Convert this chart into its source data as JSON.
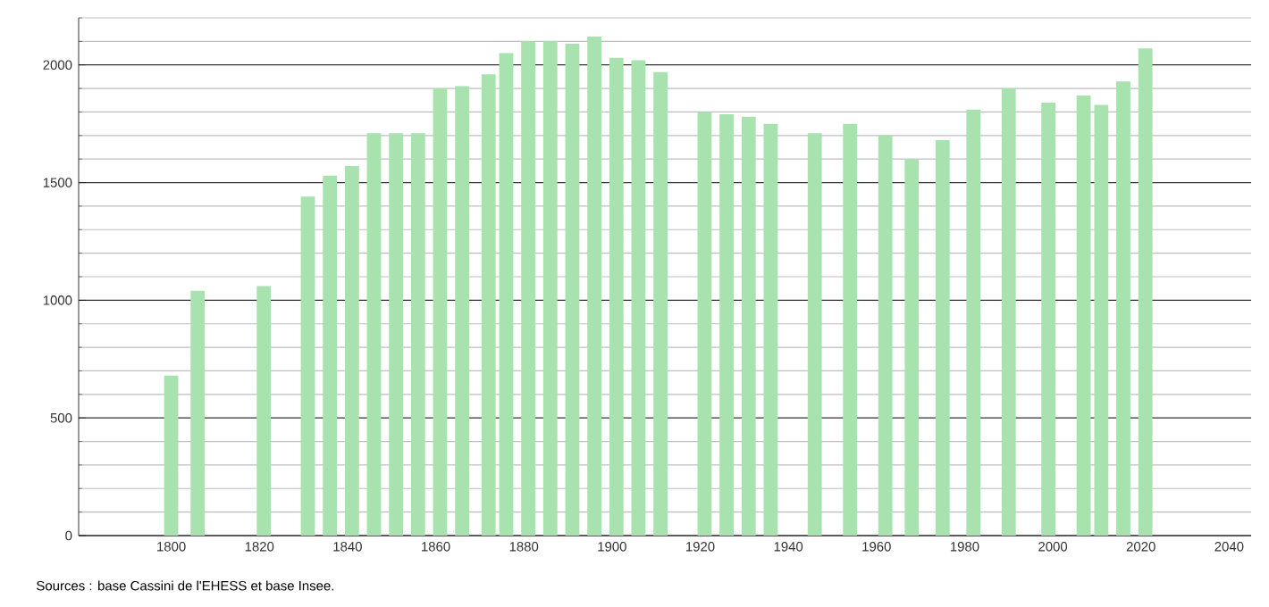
{
  "chart_data": {
    "type": "bar",
    "x": [
      1800,
      1806,
      1821,
      1831,
      1836,
      1841,
      1846,
      1851,
      1856,
      1861,
      1866,
      1872,
      1876,
      1881,
      1886,
      1891,
      1896,
      1901,
      1906,
      1911,
      1921,
      1926,
      1931,
      1936,
      1946,
      1954,
      1962,
      1968,
      1975,
      1982,
      1990,
      1999,
      2007,
      2011,
      2016,
      2021
    ],
    "values": [
      680,
      1040,
      1060,
      1440,
      1530,
      1570,
      1710,
      1710,
      1710,
      1900,
      1910,
      1960,
      2050,
      2100,
      2100,
      2090,
      2120,
      2030,
      2020,
      1970,
      1800,
      1790,
      1780,
      1750,
      1710,
      1750,
      1700,
      1600,
      1680,
      1810,
      1900,
      1840,
      1870,
      1830,
      1930,
      2070
    ],
    "color": "#a8e2ae",
    "xlim": [
      1779,
      2045
    ],
    "xticks": [
      1800,
      1820,
      1840,
      1860,
      1880,
      1900,
      1920,
      1940,
      1960,
      1980,
      2000,
      2020,
      2040
    ],
    "ylim": [
      0,
      2200
    ],
    "yticks": [
      0,
      {
        "value": 100,
        "label": null
      },
      {
        "value": 200,
        "label": null
      },
      {
        "value": 300,
        "label": null
      },
      {
        "value": 400,
        "label": null
      },
      500,
      {
        "value": 600,
        "label": null
      },
      {
        "value": 700,
        "label": null
      },
      {
        "value": 800,
        "label": null
      },
      {
        "value": 900,
        "label": null
      },
      1000,
      {
        "value": 1100,
        "label": null
      },
      {
        "value": 1200,
        "label": null
      },
      {
        "value": 1300,
        "label": null
      },
      {
        "value": 1400,
        "label": null
      },
      1500,
      {
        "value": 1600,
        "label": null
      },
      {
        "value": 1700,
        "label": null
      },
      {
        "value": 1800,
        "label": null
      },
      {
        "value": 1900,
        "label": null
      },
      2000,
      {
        "value": 2100,
        "label": null
      },
      {
        "value": 2200,
        "label": null
      }
    ],
    "grid": "y",
    "annotations": [
      "Sources : base Cassini de l'EHESS et base Insee."
    ]
  }
}
